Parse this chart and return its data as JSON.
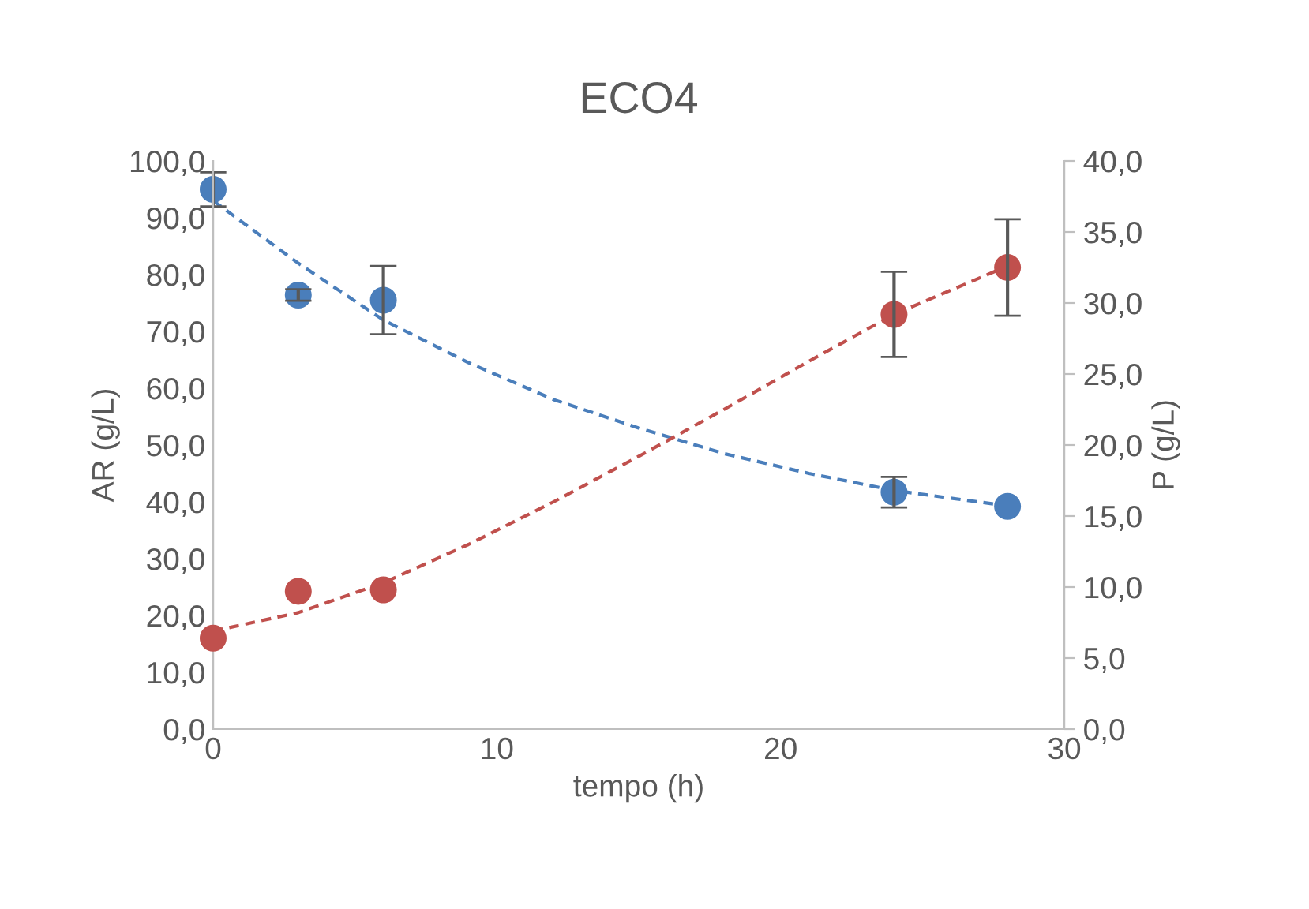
{
  "chart_data": {
    "type": "scatter",
    "title": "ECO4",
    "xlabel": "tempo (h)",
    "ylabel": "AR (g/L)",
    "y2label": "P (g/L)",
    "xlim": [
      0,
      30
    ],
    "xticks": [
      0,
      10,
      20,
      30
    ],
    "ylim": [
      0,
      100
    ],
    "yticks": [
      {
        "value": 0,
        "label": "0,0"
      },
      {
        "value": 10,
        "label": "10,0"
      },
      {
        "value": 20,
        "label": "20,0"
      },
      {
        "value": 30,
        "label": "30,0"
      },
      {
        "value": 40,
        "label": "40,0"
      },
      {
        "value": 50,
        "label": "50,0"
      },
      {
        "value": 60,
        "label": "60,0"
      },
      {
        "value": 70,
        "label": "70,0"
      },
      {
        "value": 80,
        "label": "80,0"
      },
      {
        "value": 90,
        "label": "90,0"
      },
      {
        "value": 100,
        "label": "100,0"
      }
    ],
    "y2lim": [
      0,
      40
    ],
    "y2ticks": [
      {
        "value": 0,
        "label": "0,0"
      },
      {
        "value": 5,
        "label": "5,0"
      },
      {
        "value": 10,
        "label": "10,0"
      },
      {
        "value": 15,
        "label": "15,0"
      },
      {
        "value": 20,
        "label": "20,0"
      },
      {
        "value": 25,
        "label": "25,0"
      },
      {
        "value": 30,
        "label": "30,0"
      },
      {
        "value": 35,
        "label": "35,0"
      },
      {
        "value": 40,
        "label": "40,0"
      }
    ],
    "grid": false,
    "marker": "circle",
    "series": [
      {
        "type": "line",
        "line_style": "dashed",
        "marker": "none",
        "color": "#4a7ebb",
        "x": [
          0,
          3,
          6,
          9,
          12,
          15,
          18,
          21,
          24,
          28
        ],
        "values": [
          93,
          82,
          72,
          64.5,
          58,
          53,
          48.5,
          45,
          42,
          39.3
        ]
      },
      {
        "type": "line",
        "line_style": "dashed",
        "marker": "none",
        "color": "#c0504d",
        "axis": "y2",
        "x": [
          0,
          3,
          6,
          9,
          12,
          15,
          18,
          21,
          24,
          28
        ],
        "values": [
          6.9,
          8.2,
          10.3,
          13.0,
          16.0,
          19.2,
          22.5,
          25.9,
          29.2,
          32.6
        ]
      },
      {
        "color": "#4a7ebb",
        "x": [
          0,
          3,
          6,
          24,
          28
        ],
        "values": [
          95.0,
          76.4,
          75.5,
          41.7,
          39.2
        ],
        "errors": [
          3,
          1,
          6,
          2.7,
          null
        ]
      },
      {
        "color": "#c0504d",
        "axis": "y2",
        "x": [
          0,
          3,
          6,
          24,
          28
        ],
        "values": [
          6.4,
          9.7,
          9.8,
          29.2,
          32.5
        ],
        "errors": [
          null,
          null,
          null,
          3.0,
          3.4
        ]
      }
    ]
  }
}
